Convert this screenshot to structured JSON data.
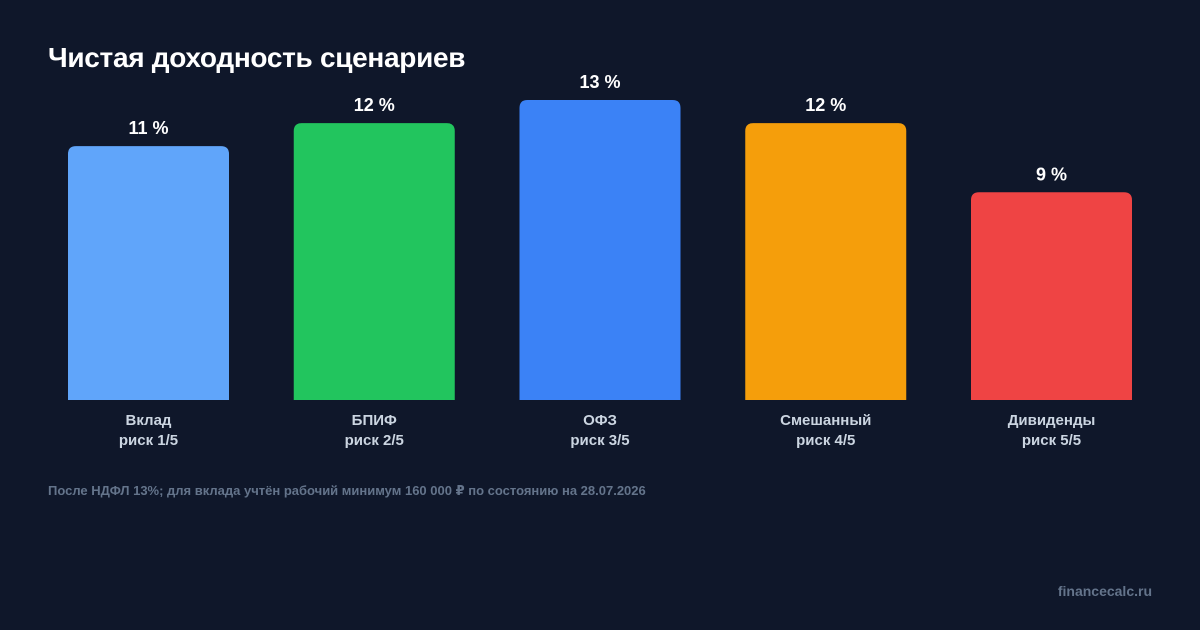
{
  "title": "Чистая доходность сценариев",
  "footnote": "После НДФЛ 13%; для вклада учтён рабочий минимум 160 000 ₽ по состоянию на 28.07.2026",
  "brand": "financecalc.ru",
  "colors": {
    "background": "#0f172a",
    "text_primary": "#ffffff",
    "text_secondary": "#cbd5e1",
    "text_muted": "#64748b"
  },
  "chart_data": {
    "type": "bar",
    "title": "Чистая доходность сценариев",
    "categories": [
      "Вклад",
      "БПИФ",
      "ОФЗ",
      "Смешанный",
      "Дивиденды"
    ],
    "risk_labels": [
      "риск 1/5",
      "риск 2/5",
      "риск 3/5",
      "риск 4/5",
      "риск 5/5"
    ],
    "values": [
      11,
      12,
      13,
      12,
      9
    ],
    "value_labels": [
      "11 %",
      "12 %",
      "13 %",
      "12 %",
      "9 %"
    ],
    "unit": "%",
    "colors": [
      "#60a5fa",
      "#22c55e",
      "#3b82f6",
      "#f59e0b",
      "#ef4444"
    ],
    "ylim": [
      0,
      13
    ],
    "grid": false,
    "legend": "none"
  }
}
